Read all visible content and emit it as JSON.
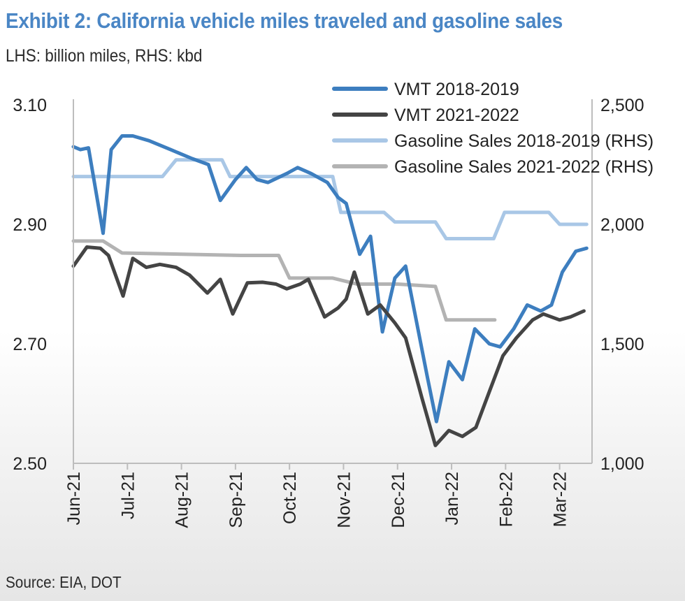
{
  "header": {
    "title": "Exhibit 2: California vehicle miles traveled and gasoline sales",
    "subtitle": "LHS: billion miles, RHS: kbd"
  },
  "footer": {
    "source": "Source: EIA, DOT"
  },
  "chart_data": {
    "type": "line",
    "title": "Exhibit 2: California vehicle miles traveled and gasoline sales",
    "subtitle": "LHS: billion miles, RHS: kbd",
    "x_tick_labels": [
      "Jun-21",
      "Jul-21",
      "Aug-21",
      "Sep-21",
      "Oct-21",
      "Nov-21",
      "Dec-21",
      "Jan-22",
      "Feb-22",
      "Mar-22"
    ],
    "x_tick_months": [
      0,
      1,
      2,
      3,
      4,
      5,
      6,
      7,
      8,
      9
    ],
    "x_range_months": [
      0,
      9.6
    ],
    "y_left": {
      "ticks": [
        "3.10",
        "2.90",
        "2.70",
        "2.50"
      ],
      "tick_values": [
        3.1,
        2.9,
        2.7,
        2.5
      ],
      "range": [
        2.5,
        3.1
      ],
      "unit": "billion miles"
    },
    "y_right": {
      "ticks": [
        "2,500",
        "2,000",
        "1,500",
        "1,000"
      ],
      "tick_values": [
        2500,
        2000,
        1500,
        1000
      ],
      "range": [
        1000,
        2500
      ],
      "unit": "kbd"
    },
    "grid": false,
    "legend_position": "top-right",
    "series": [
      {
        "name": "VMT 2018-2019",
        "axis": "left",
        "color": "#3d7ebf",
        "width": 5,
        "points": [
          [
            0,
            3.03
          ],
          [
            0.13,
            3.025
          ],
          [
            0.28,
            3.028
          ],
          [
            0.55,
            2.885
          ],
          [
            0.7,
            3.025
          ],
          [
            0.9,
            3.048
          ],
          [
            1.1,
            3.048
          ],
          [
            1.4,
            3.04
          ],
          [
            1.8,
            3.025
          ],
          [
            2.2,
            3.01
          ],
          [
            2.5,
            3.0
          ],
          [
            2.72,
            2.94
          ],
          [
            3.0,
            2.975
          ],
          [
            3.2,
            2.995
          ],
          [
            3.4,
            2.975
          ],
          [
            3.6,
            2.97
          ],
          [
            3.95,
            2.985
          ],
          [
            4.15,
            2.995
          ],
          [
            4.4,
            2.985
          ],
          [
            4.7,
            2.97
          ],
          [
            4.9,
            2.945
          ],
          [
            5.05,
            2.935
          ],
          [
            5.3,
            2.85
          ],
          [
            5.5,
            2.88
          ],
          [
            5.72,
            2.72
          ],
          [
            5.95,
            2.81
          ],
          [
            6.15,
            2.83
          ],
          [
            6.55,
            2.645
          ],
          [
            6.72,
            2.57
          ],
          [
            6.95,
            2.67
          ],
          [
            7.2,
            2.64
          ],
          [
            7.43,
            2.725
          ],
          [
            7.7,
            2.7
          ],
          [
            7.9,
            2.695
          ],
          [
            8.15,
            2.725
          ],
          [
            8.4,
            2.765
          ],
          [
            8.65,
            2.755
          ],
          [
            8.85,
            2.765
          ],
          [
            9.05,
            2.82
          ],
          [
            9.3,
            2.855
          ],
          [
            9.5,
            2.86
          ]
        ]
      },
      {
        "name": "VMT 2021-2022",
        "axis": "left",
        "color": "#444444",
        "width": 5,
        "points": [
          [
            0,
            2.83
          ],
          [
            0.25,
            2.862
          ],
          [
            0.5,
            2.86
          ],
          [
            0.65,
            2.848
          ],
          [
            0.92,
            2.78
          ],
          [
            1.1,
            2.843
          ],
          [
            1.35,
            2.828
          ],
          [
            1.6,
            2.833
          ],
          [
            1.9,
            2.828
          ],
          [
            2.15,
            2.815
          ],
          [
            2.48,
            2.785
          ],
          [
            2.72,
            2.808
          ],
          [
            2.95,
            2.75
          ],
          [
            3.22,
            2.802
          ],
          [
            3.5,
            2.803
          ],
          [
            3.75,
            2.8
          ],
          [
            3.95,
            2.792
          ],
          [
            4.2,
            2.8
          ],
          [
            4.35,
            2.808
          ],
          [
            4.65,
            2.745
          ],
          [
            4.9,
            2.76
          ],
          [
            5.05,
            2.775
          ],
          [
            5.2,
            2.82
          ],
          [
            5.45,
            2.75
          ],
          [
            5.68,
            2.765
          ],
          [
            5.95,
            2.735
          ],
          [
            6.15,
            2.71
          ],
          [
            6.45,
            2.61
          ],
          [
            6.7,
            2.53
          ],
          [
            6.95,
            2.555
          ],
          [
            7.2,
            2.545
          ],
          [
            7.45,
            2.56
          ],
          [
            7.7,
            2.62
          ],
          [
            7.95,
            2.68
          ],
          [
            8.2,
            2.71
          ],
          [
            8.5,
            2.74
          ],
          [
            8.7,
            2.75
          ],
          [
            9.0,
            2.74
          ],
          [
            9.2,
            2.745
          ],
          [
            9.45,
            2.755
          ]
        ]
      },
      {
        "name": "Gasoline Sales 2018-2019 (RHS)",
        "axis": "right",
        "color": "#a9c7e6",
        "width": 5,
        "points": [
          [
            0,
            2200
          ],
          [
            1.65,
            2200
          ],
          [
            1.9,
            2270
          ],
          [
            2.75,
            2270
          ],
          [
            2.9,
            2200
          ],
          [
            4.8,
            2200
          ],
          [
            4.95,
            2050
          ],
          [
            5.75,
            2050
          ],
          [
            5.95,
            2010
          ],
          [
            6.7,
            2010
          ],
          [
            6.9,
            1940
          ],
          [
            7.78,
            1940
          ],
          [
            7.98,
            2050
          ],
          [
            8.8,
            2050
          ],
          [
            9.0,
            2000
          ],
          [
            9.5,
            2000
          ]
        ]
      },
      {
        "name": "Gasoline Sales 2021-2022 (RHS)",
        "axis": "right",
        "color": "#b3b3b3",
        "width": 5,
        "points": [
          [
            0,
            1930
          ],
          [
            0.55,
            1930
          ],
          [
            0.9,
            1880
          ],
          [
            3.1,
            1870
          ],
          [
            3.8,
            1870
          ],
          [
            4.0,
            1775
          ],
          [
            4.8,
            1775
          ],
          [
            5.25,
            1750
          ],
          [
            6.0,
            1750
          ],
          [
            6.7,
            1740
          ],
          [
            6.9,
            1600
          ],
          [
            7.8,
            1600
          ]
        ]
      }
    ]
  }
}
